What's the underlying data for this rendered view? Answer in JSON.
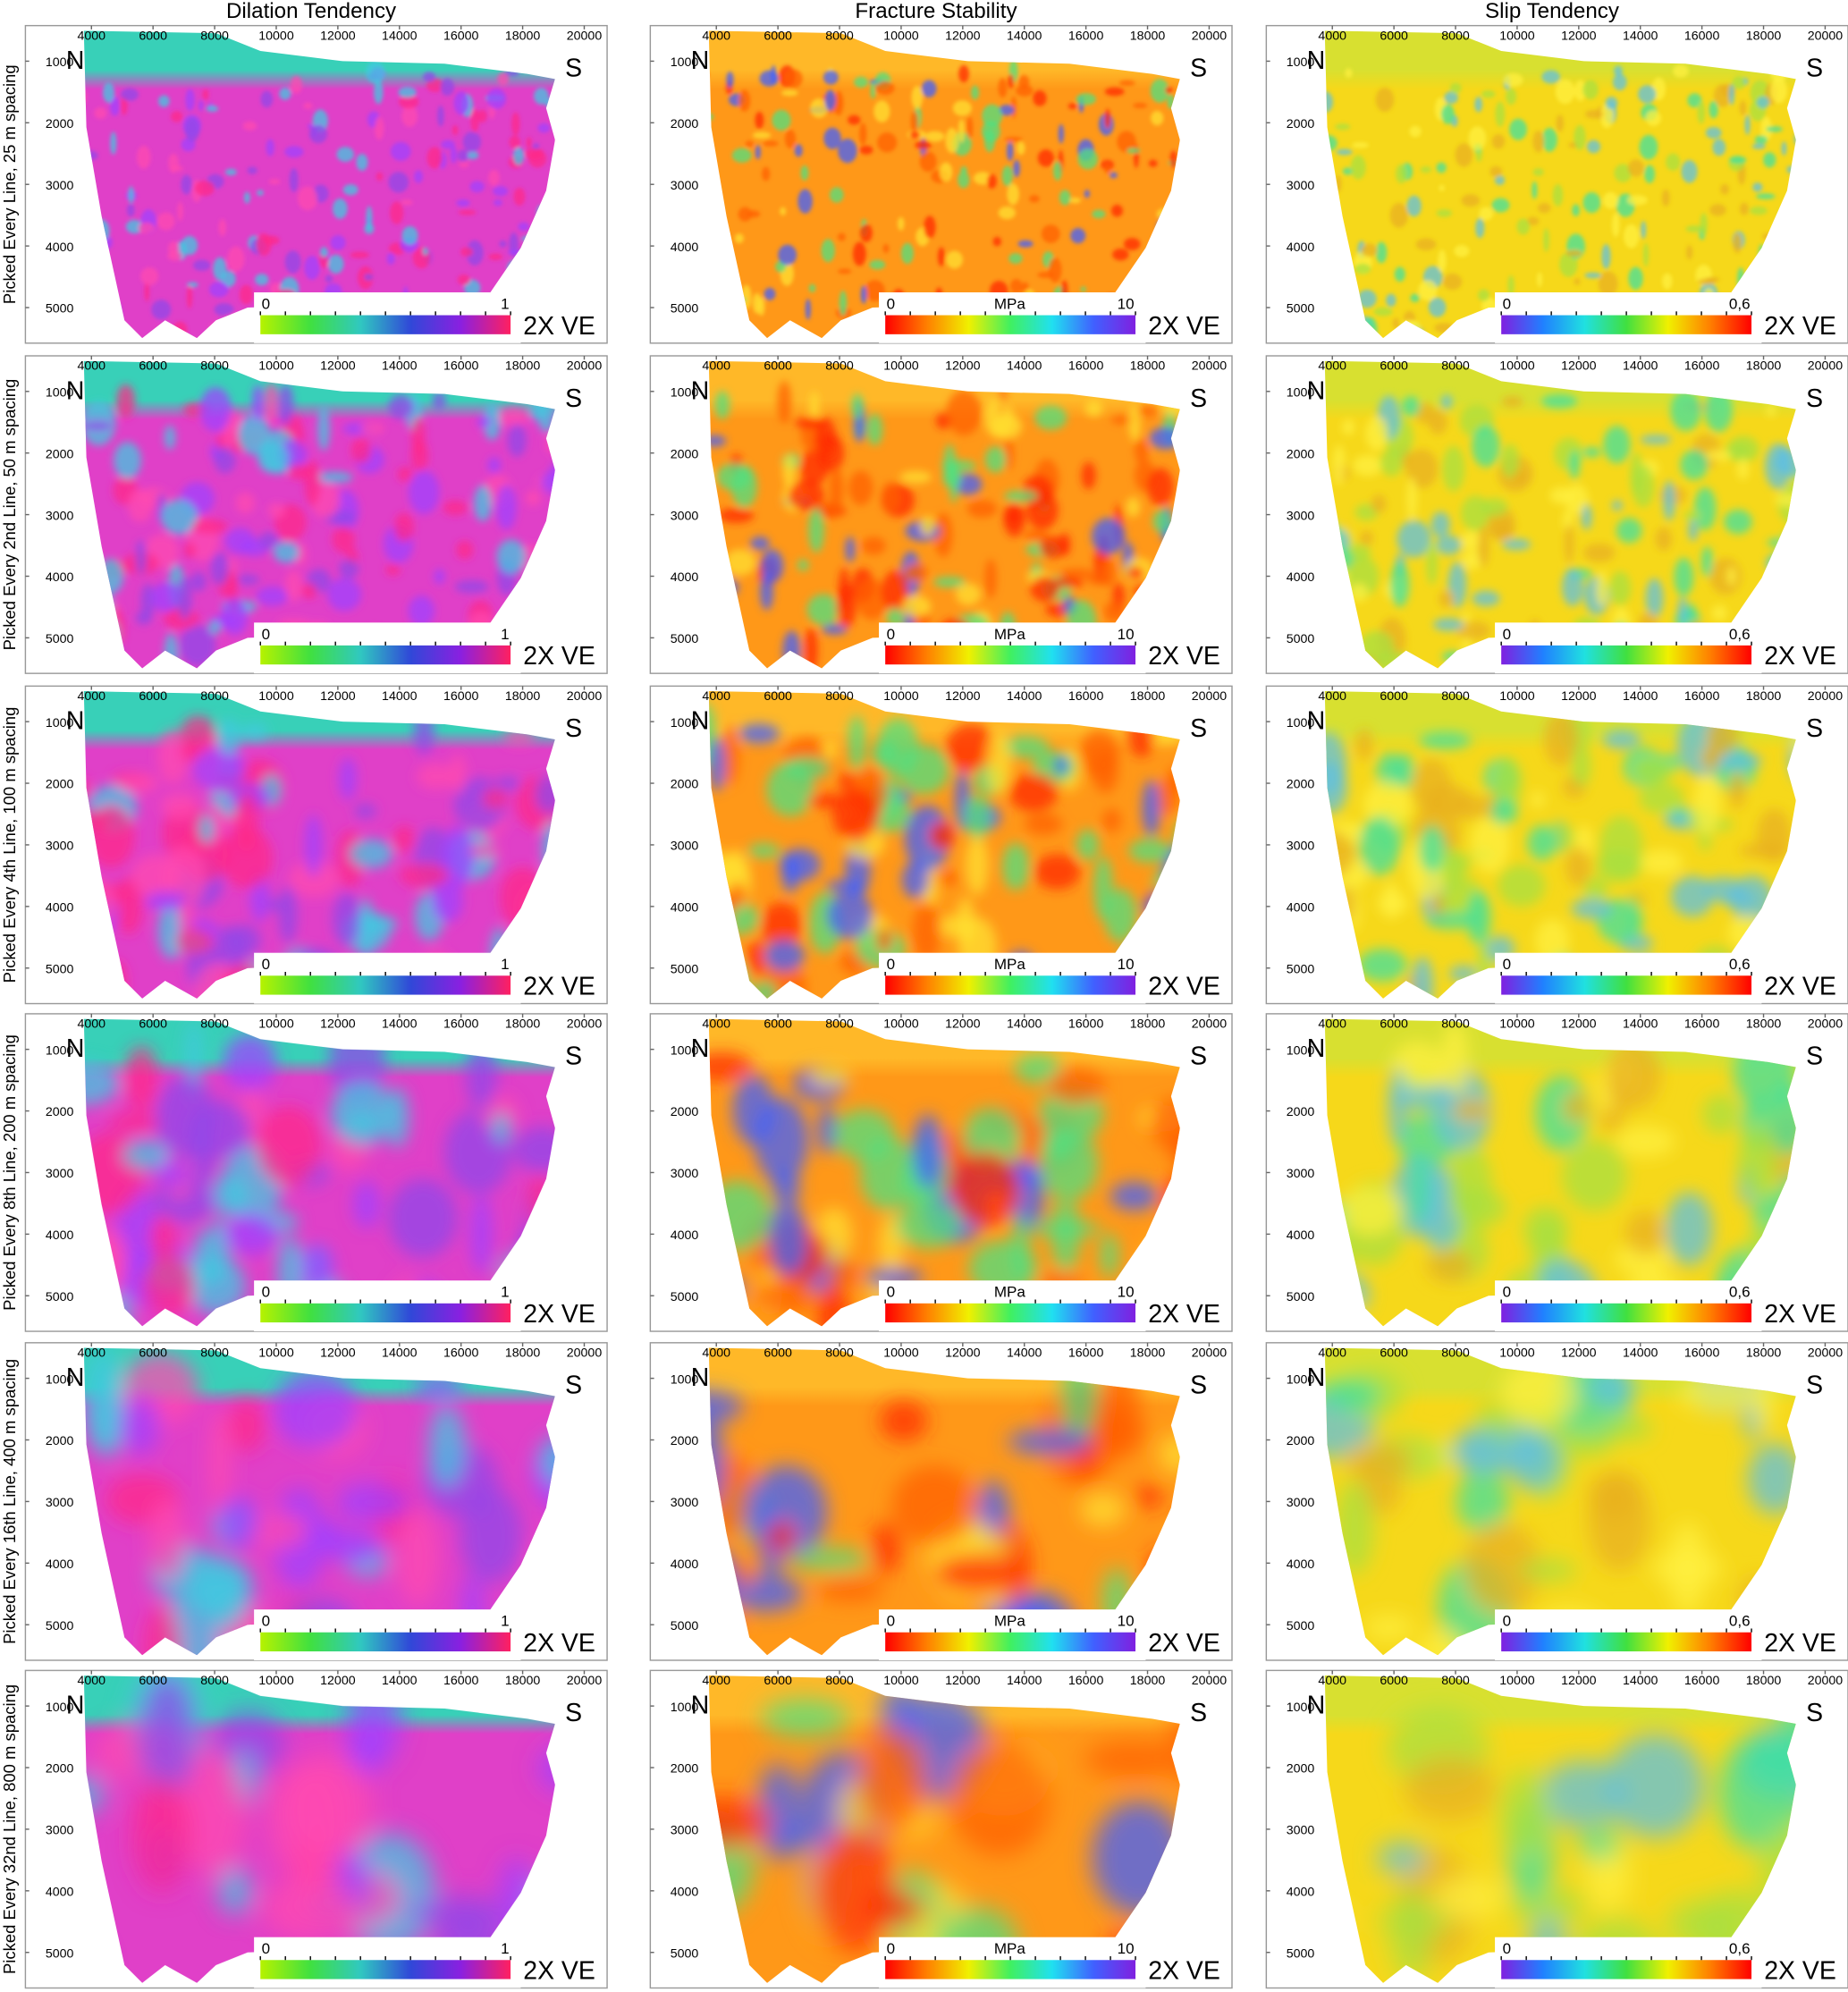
{
  "figure": {
    "columns": [
      {
        "title": "Dilation Tendency",
        "colorbar": {
          "min": 0,
          "max": 1,
          "colors": [
            "#b6f200",
            "#40e040",
            "#30c8c0",
            "#3048d8",
            "#8a20e0",
            "#ff2060"
          ]
        },
        "field_colors": [
          "#e040c8",
          "#ff2a88",
          "#9048e8",
          "#40c8e0",
          "#a040ff",
          "#ff4ab0"
        ],
        "band_color": "#38d0b8"
      },
      {
        "title": "Fracture Stability",
        "colorbar": {
          "min": 0,
          "max": 10,
          "unit": "MPa",
          "colors": [
            "#ff0000",
            "#ff8000",
            "#f0f000",
            "#40f060",
            "#20e0f0",
            "#4060ff",
            "#8020e0"
          ]
        },
        "field_colors": [
          "#ff9818",
          "#ff2a00",
          "#ffe030",
          "#50e080",
          "#4060ff",
          "#ff6000"
        ],
        "band_color": "#ffb828"
      },
      {
        "title": "Slip Tendency",
        "colorbar": {
          "min": 0,
          "max": "0,6",
          "colors": [
            "#8020e0",
            "#2080ff",
            "#20e0e0",
            "#40e040",
            "#f0f000",
            "#ff8000",
            "#ff0000"
          ]
        },
        "field_colors": [
          "#f6d81a",
          "#a8e040",
          "#40e0a0",
          "#e8b020",
          "#fff040",
          "#60c0e0"
        ],
        "band_color": "#d8e030"
      }
    ],
    "rows": [
      "Picked Every Line, 25 m spacing",
      "Picked Every 2nd Line, 50 m spacing",
      "Picked Every 4th Line, 100 m spacing",
      "Picked Every 8th Line, 200 m spacing",
      "Picked Every 16th Line, 400 m spacing",
      "Picked Every  32nd Line, 800 m spacing"
    ],
    "x_ticks": [
      4000,
      6000,
      8000,
      10000,
      12000,
      14000,
      16000,
      18000,
      20000
    ],
    "y_ticks": [
      1000,
      2000,
      3000,
      4000,
      5000
    ],
    "north_label": "N",
    "south_label": "S",
    "exaggeration_label": "2X VE"
  }
}
